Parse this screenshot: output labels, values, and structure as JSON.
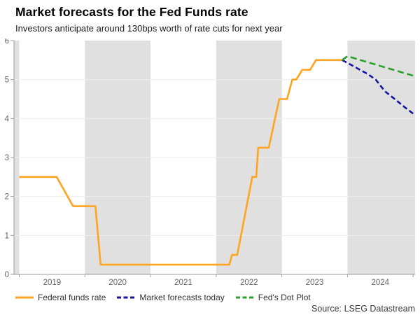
{
  "header": {
    "title": "Market forecasts for the Fed Funds rate",
    "subtitle": "Investors anticipate around 130bps worth of rate cuts for next year"
  },
  "source": "Source: LSEG Datastream",
  "colors": {
    "background": "#FFFFFF",
    "year_band": "#E0E0E0",
    "gridline": "#EEEEEE",
    "axis": "#9C9C9C",
    "tick_label": "#636363",
    "title_text": "#000000",
    "legend_text": "#333333"
  },
  "chart_data": {
    "type": "line",
    "title": "Market forecasts for the Fed Funds rate",
    "subtitle": "Investors anticipate around 130bps worth of rate cuts for next year",
    "xlabel": "",
    "ylabel": "",
    "ylim": [
      0,
      6
    ],
    "xlim": [
      2018.92,
      2025.03
    ],
    "y_ticks": [
      0,
      1,
      2,
      3,
      4,
      5,
      6
    ],
    "x_tick_labels": [
      "2019",
      "2020",
      "2021",
      "2022",
      "2023",
      "2024"
    ],
    "grid": "horizontal",
    "legend_position": "bottom",
    "shaded_year_bands": [
      [
        2018.92,
        2019.0
      ],
      [
        2020.0,
        2021.0
      ],
      [
        2022.0,
        2023.0
      ],
      [
        2024.0,
        2025.03
      ]
    ],
    "series": [
      {
        "id": "federal-funds-rate",
        "name": "Federal funds rate",
        "color": "#FFA41E",
        "line_style": "solid",
        "dash": "solid",
        "points": [
          [
            2019.0,
            2.5
          ],
          [
            2019.57,
            2.5
          ],
          [
            2019.82,
            1.75
          ],
          [
            2020.16,
            1.75
          ],
          [
            2020.24,
            0.25
          ],
          [
            2022.2,
            0.25
          ],
          [
            2022.24,
            0.5
          ],
          [
            2022.32,
            0.5
          ],
          [
            2022.55,
            2.5
          ],
          [
            2022.61,
            2.5
          ],
          [
            2022.64,
            3.25
          ],
          [
            2022.8,
            3.25
          ],
          [
            2022.96,
            4.5
          ],
          [
            2023.08,
            4.5
          ],
          [
            2023.16,
            5.0
          ],
          [
            2023.22,
            5.0
          ],
          [
            2023.31,
            5.25
          ],
          [
            2023.43,
            5.25
          ],
          [
            2023.52,
            5.5
          ],
          [
            2023.92,
            5.5
          ]
        ]
      },
      {
        "id": "market-forecasts-today",
        "name": "Market forecasts today",
        "color": "#15159D",
        "line_style": "dashed",
        "dash": "7,4",
        "points": [
          [
            2023.92,
            5.5
          ],
          [
            2024.03,
            5.4
          ],
          [
            2024.3,
            5.15
          ],
          [
            2024.43,
            5.0
          ],
          [
            2024.57,
            4.7
          ],
          [
            2024.72,
            4.5
          ],
          [
            2024.88,
            4.28
          ],
          [
            2025.02,
            4.1
          ]
        ]
      },
      {
        "id": "feds-dot-plot",
        "name": "Fed's Dot Plot",
        "color": "#29A029",
        "line_style": "dashed",
        "dash": "9,5",
        "points": [
          [
            2023.92,
            5.5
          ],
          [
            2024.0,
            5.6
          ],
          [
            2025.0,
            5.1
          ]
        ]
      }
    ]
  }
}
